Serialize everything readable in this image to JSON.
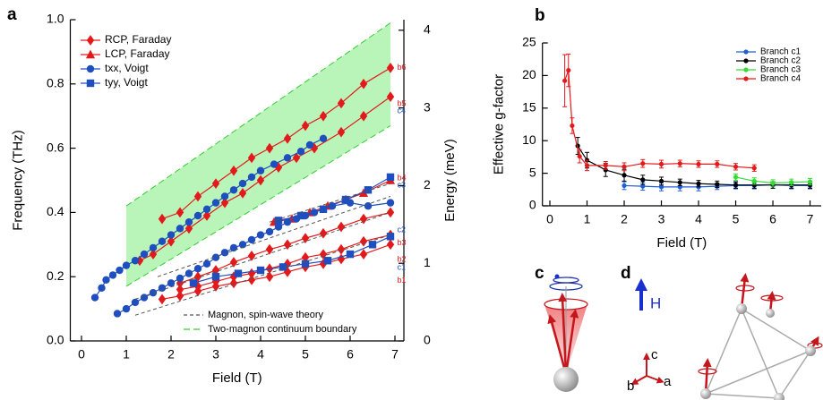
{
  "chart_data": [
    {
      "type": "line",
      "label": "a",
      "x_label": "Field (T)",
      "y_label": "Frequency (THz)",
      "y2_label": "Energy (meV)",
      "xlim": [
        -0.25,
        7.2
      ],
      "ylim": [
        0,
        1
      ],
      "y2lim": [
        0,
        4.136
      ],
      "xticks": [
        0,
        1,
        2,
        3,
        4,
        5,
        6,
        7
      ],
      "yticks": [
        {
          "value": 0,
          "label": "0.0"
        },
        0.2,
        0.4,
        0.6,
        0.8,
        {
          "value": 1,
          "label": "1.0"
        }
      ],
      "y2ticks": [
        0,
        1,
        2,
        3,
        4
      ],
      "series": [
        {
          "name": "RCP, Faraday",
          "color": "#e31a1c",
          "marker": "diamond",
          "legend": "upper left",
          "x": [
            1.8,
            2.2,
            2.6,
            3.0,
            3.4,
            3.8,
            4.2,
            4.6,
            5.0,
            5.4,
            5.8,
            6.3,
            6.9,
            null,
            1.3,
            1.6,
            2.0,
            2.4,
            2.8,
            3.2,
            3.6,
            4.0,
            4.4,
            4.8,
            5.2,
            5.8,
            6.3,
            6.9,
            null,
            1.8,
            2.2,
            2.6,
            3.0,
            3.4,
            3.8,
            4.2,
            4.6,
            5.0,
            5.4,
            5.8,
            6.3,
            6.9,
            null,
            2.2,
            2.6,
            3.0,
            3.4,
            3.8,
            4.2,
            4.6,
            5.0,
            5.4,
            5.8,
            6.3,
            6.9,
            null,
            2.2,
            2.6,
            3.0,
            3.4,
            3.8,
            4.2,
            4.6,
            5.0,
            5.4,
            5.8,
            6.3,
            6.9
          ],
          "values": [
            0.38,
            0.4,
            0.45,
            0.49,
            0.53,
            0.57,
            0.6,
            0.63,
            0.67,
            0.7,
            0.74,
            0.8,
            0.85,
            null,
            0.25,
            0.27,
            0.31,
            0.35,
            0.39,
            0.43,
            0.46,
            0.5,
            0.54,
            0.57,
            0.6,
            0.65,
            0.7,
            0.76,
            null,
            0.13,
            0.14,
            0.155,
            0.17,
            0.18,
            0.19,
            0.2,
            0.215,
            0.23,
            0.24,
            0.255,
            0.27,
            0.3,
            null,
            0.16,
            0.17,
            0.185,
            0.2,
            0.21,
            0.225,
            0.24,
            0.26,
            0.27,
            0.285,
            0.31,
            0.33,
            null,
            0.18,
            0.2,
            0.22,
            0.245,
            0.265,
            0.285,
            0.3,
            0.32,
            0.335,
            0.355,
            0.38,
            0.4
          ]
        },
        {
          "name": "LCP, Faraday",
          "color": "#e31a1c",
          "marker": "triangle",
          "legend": "upper left",
          "x": [
            4.3,
            4.7,
            5.1,
            5.5,
            5.9,
            6.3,
            6.9
          ],
          "values": [
            0.37,
            0.38,
            0.4,
            0.42,
            0.44,
            0.46,
            0.5
          ]
        },
        {
          "name": "txx, Voigt",
          "color": "#1f4fbf",
          "marker": "circle",
          "legend": "upper left",
          "x": [
            0.3,
            0.45,
            0.55,
            0.7,
            0.85,
            1.0,
            1.2,
            1.4,
            1.6,
            1.8,
            2.0,
            2.2,
            2.4,
            2.6,
            2.8,
            3.0,
            3.2,
            3.4,
            3.6,
            3.8,
            4.0,
            4.3,
            4.6,
            4.9,
            5.1,
            5.4,
            null,
            0.8,
            1.0,
            1.2,
            1.4,
            1.6,
            1.8,
            2.0,
            2.2,
            2.4,
            2.6,
            2.8,
            3.0,
            3.2,
            3.4,
            3.6,
            3.8,
            4.0,
            4.2,
            4.4,
            4.6,
            4.8,
            5.0,
            5.2,
            5.4,
            5.6,
            6.0,
            6.4,
            6.9
          ],
          "values": [
            0.135,
            0.165,
            0.19,
            0.205,
            0.22,
            0.235,
            0.25,
            0.27,
            0.29,
            0.31,
            0.33,
            0.35,
            0.37,
            0.39,
            0.41,
            0.43,
            0.45,
            0.47,
            0.49,
            0.51,
            0.53,
            0.55,
            0.57,
            0.59,
            0.61,
            0.63,
            null,
            0.085,
            0.1,
            0.12,
            0.135,
            0.15,
            0.165,
            0.18,
            0.195,
            0.21,
            0.225,
            0.24,
            0.26,
            0.275,
            0.29,
            0.3,
            0.315,
            0.33,
            0.34,
            0.355,
            0.37,
            0.38,
            0.39,
            0.4,
            0.41,
            0.42,
            0.43,
            0.42,
            0.43
          ]
        },
        {
          "name": "tyy, Voigt",
          "color": "#1f4fbf",
          "marker": "square",
          "legend": "upper left",
          "x": [
            2.5,
            3.0,
            3.5,
            4.0,
            4.5,
            5.0,
            5.5,
            6.0,
            6.5,
            6.9,
            null,
            4.4,
            4.9,
            5.4,
            5.9,
            6.4,
            6.9
          ],
          "values": [
            0.18,
            0.2,
            0.21,
            0.22,
            0.23,
            0.24,
            0.25,
            0.27,
            0.3,
            0.325,
            null,
            0.375,
            0.39,
            0.41,
            0.44,
            0.47,
            0.51
          ]
        },
        {
          "name": "Magnon, spin-wave theory",
          "color": "#555555",
          "marker": "none",
          "dash": true,
          "legend": "lower right",
          "x": [
            1.2,
            6.9,
            null,
            1.2,
            6.9,
            null,
            1.7,
            6.9,
            null,
            4.2,
            6.9
          ],
          "values": [
            0.08,
            0.33,
            null,
            0.13,
            0.4,
            null,
            0.2,
            0.45,
            null,
            0.37,
            0.49
          ]
        },
        {
          "name": "Two-magnon continuum boundary",
          "color": "#33cc33",
          "fill": "#b9f5b9",
          "marker": "none",
          "dash": true,
          "legend": "lower right",
          "x": [
            1.0,
            6.9,
            null,
            1.0,
            6.9
          ],
          "values": [
            0.17,
            0.67,
            null,
            0.42,
            0.99
          ]
        }
      ],
      "annotations": [
        {
          "text": "b6",
          "x": 7.05,
          "y": 0.85,
          "color": "#e31a1c"
        },
        {
          "text": "b5",
          "x": 7.05,
          "y": 0.738,
          "color": "#e31a1c"
        },
        {
          "text": "c4",
          "x": 7.05,
          "y": 0.716,
          "color": "#1f4fbf"
        },
        {
          "text": "b4",
          "x": 7.05,
          "y": 0.507,
          "color": "#e31a1c"
        },
        {
          "text": "c3",
          "x": 7.05,
          "y": 0.485,
          "color": "#1f4fbf"
        },
        {
          "text": "c2",
          "x": 7.05,
          "y": 0.345,
          "color": "#1f4fbf"
        },
        {
          "text": "b3",
          "x": 7.05,
          "y": 0.304,
          "color": "#e31a1c"
        },
        {
          "text": "b2",
          "x": 7.05,
          "y": 0.253,
          "color": "#e31a1c"
        },
        {
          "text": "c1",
          "x": 7.05,
          "y": 0.228,
          "color": "#1f4fbf"
        },
        {
          "text": "b1",
          "x": 7.05,
          "y": 0.187,
          "color": "#e31a1c"
        }
      ]
    },
    {
      "type": "line",
      "label": "b",
      "x_label": "Field (T)",
      "y_label": "Effective g-factor",
      "xlim": [
        -0.2,
        7.3
      ],
      "ylim": [
        0,
        25
      ],
      "xticks": [
        0,
        1,
        2,
        3,
        4,
        5,
        6,
        7
      ],
      "yticks": [
        0,
        5,
        10,
        15,
        20,
        25
      ],
      "series": [
        {
          "name": "Branch c1",
          "color": "#1f5fd6",
          "marker": "circle",
          "legend": "upper right",
          "x": [
            2,
            2.5,
            3,
            3.5,
            4,
            4.5,
            5,
            5.5,
            6,
            6.5,
            7
          ],
          "values": [
            3.1,
            3.0,
            2.9,
            2.9,
            2.9,
            3.0,
            3.1,
            3.1,
            3.2,
            3.1,
            3.1
          ],
          "errors": [
            0.6,
            0.6,
            0.6,
            0.6,
            0.6,
            0.5,
            0.5,
            0.5,
            0.5,
            0.5,
            0.5
          ]
        },
        {
          "name": "Branch c2",
          "color": "#000000",
          "marker": "circle",
          "legend": "upper right",
          "x": [
            0.75,
            1,
            1.5,
            2,
            2.5,
            3,
            3.5,
            4,
            4.5,
            5,
            5.5,
            6,
            6.5,
            7
          ],
          "values": [
            9.2,
            7.0,
            5.5,
            4.7,
            4.0,
            3.8,
            3.6,
            3.4,
            3.3,
            3.2,
            3.2,
            3.2,
            3.2,
            3.2
          ],
          "errors": [
            1.3,
            1.2,
            1.0,
            0.9,
            0.7,
            0.6,
            0.5,
            0.5,
            0.5,
            0.5,
            0.5,
            0.5,
            0.5,
            0.5
          ]
        },
        {
          "name": "Branch c3",
          "color": "#33dd33",
          "marker": "circle",
          "legend": "upper right",
          "x": [
            5,
            5.5,
            6,
            6.5,
            7
          ],
          "values": [
            4.4,
            3.8,
            3.5,
            3.6,
            3.7
          ],
          "errors": [
            0.5,
            0.5,
            0.5,
            0.5,
            0.5
          ]
        },
        {
          "name": "Branch c4",
          "color": "#e31a1c",
          "marker": "circle",
          "legend": "upper right",
          "x": [
            0.4,
            0.5,
            0.6,
            0.8,
            1,
            1.5,
            2,
            2.5,
            3,
            3.5,
            4,
            4.5,
            5,
            5.5
          ],
          "values": [
            19.2,
            20.8,
            12.3,
            7.6,
            6.2,
            6.2,
            6.0,
            6.5,
            6.4,
            6.5,
            6.4,
            6.4,
            6.0,
            5.8
          ],
          "errors": [
            4.0,
            2.5,
            1.2,
            1.0,
            0.8,
            0.6,
            0.6,
            0.6,
            0.6,
            0.5,
            0.5,
            0.5,
            0.5,
            0.5
          ]
        }
      ]
    }
  ],
  "illustrations": {
    "c": {
      "label": "c"
    },
    "d": {
      "label": "d",
      "field": "H",
      "axes": [
        "c",
        "b",
        "a"
      ]
    }
  }
}
